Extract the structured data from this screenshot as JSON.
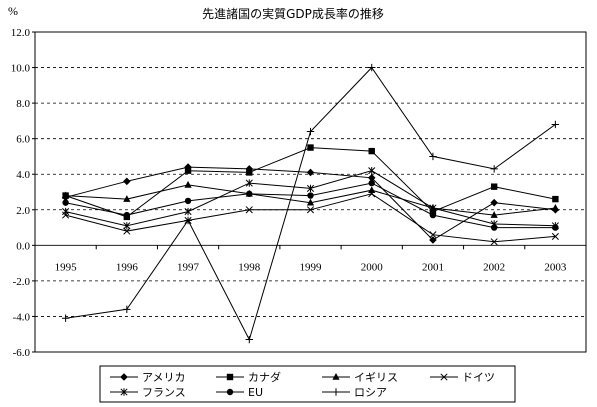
{
  "chart_data": {
    "type": "line",
    "title": "先進諸国の実質GDP成長率の推移",
    "ylabel": "%",
    "xlabel": "",
    "ylim": [
      -6.0,
      12.0
    ],
    "ytick_step": 2.0,
    "y_ticks": [
      "12.0",
      "10.0",
      "8.0",
      "6.0",
      "4.0",
      "2.0",
      "0.0",
      "-2.0",
      "-4.0",
      "-6.0"
    ],
    "grid": "horizontal-dashed",
    "legend_position": "bottom",
    "categories": [
      "1995",
      "1996",
      "1997",
      "1998",
      "1999",
      "2000",
      "2001",
      "2002",
      "2003"
    ],
    "series": [
      {
        "name": "アメリカ",
        "marker": "diamond",
        "values": [
          2.7,
          3.6,
          4.4,
          4.3,
          4.1,
          3.8,
          0.3,
          2.4,
          2.0
        ]
      },
      {
        "name": "カナダ",
        "marker": "square",
        "values": [
          2.8,
          1.6,
          4.2,
          4.1,
          5.5,
          5.3,
          1.9,
          3.3,
          2.6
        ]
      },
      {
        "name": "イギリス",
        "marker": "triangle",
        "values": [
          2.8,
          2.6,
          3.4,
          2.9,
          2.4,
          3.1,
          2.1,
          1.7,
          2.1
        ]
      },
      {
        "name": "ドイツ",
        "marker": "x",
        "values": [
          1.7,
          0.8,
          1.4,
          2.0,
          2.0,
          2.9,
          0.6,
          0.2,
          0.5
        ]
      },
      {
        "name": "フランス",
        "marker": "asterisk",
        "values": [
          1.9,
          1.1,
          1.9,
          3.5,
          3.2,
          4.2,
          2.1,
          1.2,
          1.1
        ]
      },
      {
        "name": "EU",
        "marker": "circle",
        "values": [
          2.4,
          1.7,
          2.5,
          2.9,
          2.8,
          3.5,
          1.7,
          1.0,
          1.0
        ]
      },
      {
        "name": "ロシア",
        "marker": "plus",
        "values": [
          -4.1,
          -3.6,
          1.4,
          -5.3,
          6.4,
          10.0,
          5.0,
          4.3,
          6.8
        ]
      }
    ]
  }
}
